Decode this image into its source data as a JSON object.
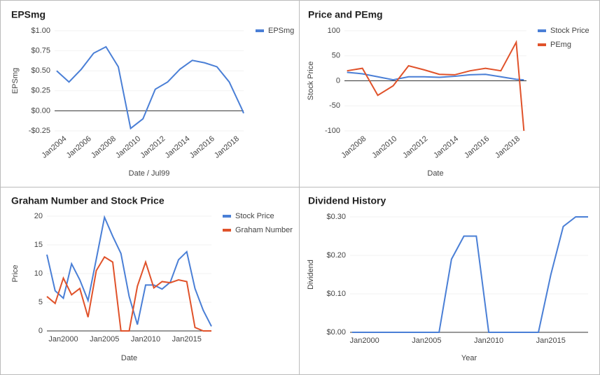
{
  "chart_data": [
    {
      "type": "line",
      "title": "EPSmg",
      "x_label": "Date / Jul99",
      "y_label": "EPSmg",
      "x": [
        "2003-07",
        "2004-07",
        "2005-07",
        "2006-07",
        "2007-07",
        "2008-07",
        "2009-07",
        "2010-07",
        "2011-07",
        "2012-07",
        "2013-07",
        "2014-07",
        "2015-07",
        "2016-07",
        "2017-07",
        "2018-07",
        "2018-09"
      ],
      "series": [
        {
          "name": "EPSmg",
          "color": "#4a7fd6",
          "values": [
            0.5,
            0.36,
            0.52,
            0.72,
            0.8,
            0.55,
            -0.22,
            -0.1,
            0.27,
            0.36,
            0.52,
            0.63,
            0.6,
            0.55,
            0.36,
            0.03,
            -0.03
          ]
        }
      ],
      "xlim": [
        "2003-05",
        "2018-09"
      ],
      "xticks": [
        {
          "value": "2004-01",
          "label": "Jan2004"
        },
        {
          "value": "2006-01",
          "label": "Jan2006"
        },
        {
          "value": "2008-01",
          "label": "Jan2008"
        },
        {
          "value": "2010-01",
          "label": "Jan2010"
        },
        {
          "value": "2012-01",
          "label": "Jan2012"
        },
        {
          "value": "2014-01",
          "label": "Jan2014"
        },
        {
          "value": "2016-01",
          "label": "Jan2016"
        },
        {
          "value": "2018-01",
          "label": "Jan2018"
        }
      ],
      "ylim": [
        -0.25,
        1.0
      ],
      "yticks": [
        {
          "value": -0.25,
          "label": "-$0.25"
        },
        {
          "value": 0,
          "label": "$0.00"
        },
        {
          "value": 0.25,
          "label": "$0.25"
        },
        {
          "value": 0.5,
          "label": "$0.50"
        },
        {
          "value": 0.75,
          "label": "$0.75"
        },
        {
          "value": 1.0,
          "label": "$1.00"
        }
      ],
      "legend": "top-right"
    },
    {
      "type": "line",
      "title": "Price and PEmg",
      "x_label": "Date",
      "y_label": "Stock Price",
      "x": [
        "2007-01",
        "2008-01",
        "2009-01",
        "2010-01",
        "2011-01",
        "2012-01",
        "2013-01",
        "2014-01",
        "2015-01",
        "2016-01",
        "2017-01",
        "2018-01",
        "2018-07"
      ],
      "series": [
        {
          "name": "Stock Price",
          "color": "#4a7fd6",
          "values": [
            17,
            14,
            8,
            2,
            8,
            8,
            7,
            9,
            12,
            13,
            8,
            3,
            2
          ]
        },
        {
          "name": "PEmg",
          "color": "#e0522a",
          "values": [
            20,
            25,
            -29,
            -10,
            30,
            22,
            13,
            12,
            20,
            25,
            20,
            77,
            -100
          ]
        }
      ],
      "xlim": [
        "2006-11",
        "2018-09"
      ],
      "xticks": [
        {
          "value": "2008-01",
          "label": "Jan2008"
        },
        {
          "value": "2010-01",
          "label": "Jan2010"
        },
        {
          "value": "2012-01",
          "label": "Jan2012"
        },
        {
          "value": "2014-01",
          "label": "Jan2014"
        },
        {
          "value": "2016-01",
          "label": "Jan2016"
        },
        {
          "value": "2018-01",
          "label": "Jan2018"
        }
      ],
      "ylim": [
        -100,
        100
      ],
      "yticks": [
        -100,
        -50,
        0,
        50,
        100
      ],
      "legend": "top-right"
    },
    {
      "type": "line",
      "title": "Graham Number and Stock Price",
      "x_label": "Date",
      "y_label": "Price",
      "x": [
        "1998-01",
        "1999-01",
        "2000-01",
        "2001-01",
        "2002-01",
        "2003-01",
        "2004-01",
        "2005-01",
        "2006-01",
        "2007-01",
        "2008-01",
        "2009-01",
        "2010-01",
        "2011-01",
        "2012-01",
        "2013-01",
        "2014-01",
        "2015-01",
        "2016-01",
        "2017-01",
        "2018-01"
      ],
      "series": [
        {
          "name": "Stock Price",
          "color": "#4a7fd6",
          "values": [
            13.3,
            7,
            5.7,
            11.7,
            8.9,
            5.3,
            12.5,
            19.8,
            16.5,
            13.5,
            6,
            1.1,
            8,
            8,
            7.3,
            8.5,
            12.4,
            13.8,
            7.4,
            3.6,
            0.8
          ]
        },
        {
          "name": "Graham Number",
          "color": "#e0522a",
          "values": [
            6,
            4.8,
            9.2,
            6.3,
            7.4,
            2.4,
            10.5,
            12.9,
            12,
            0,
            0,
            7.8,
            12,
            7.5,
            8.6,
            8.4,
            8.9,
            8.6,
            0.6,
            0,
            0
          ]
        }
      ],
      "xlim": [
        "1998-01",
        "2018-01"
      ],
      "xticks": [
        {
          "value": "2000-01",
          "label": "Jan2000"
        },
        {
          "value": "2005-01",
          "label": "Jan2005"
        },
        {
          "value": "2010-01",
          "label": "Jan2010"
        },
        {
          "value": "2015-01",
          "label": "Jan2015"
        }
      ],
      "ylim": [
        0,
        20
      ],
      "yticks": [
        0,
        5,
        10,
        15,
        20
      ],
      "legend": "top-right"
    },
    {
      "type": "line",
      "title": "Dividend History",
      "x_label": "Year",
      "y_label": "Dividend",
      "x": [
        "1999-01",
        "2000-01",
        "2001-01",
        "2002-01",
        "2003-01",
        "2004-01",
        "2005-01",
        "2006-01",
        "2007-01",
        "2008-01",
        "2009-01",
        "2010-01",
        "2011-01",
        "2012-01",
        "2013-01",
        "2014-01",
        "2015-01",
        "2016-01",
        "2017-01",
        "2018-01"
      ],
      "values": [
        0,
        0,
        0,
        0,
        0,
        0,
        0,
        0,
        0.19,
        0.25,
        0.25,
        0,
        0,
        0,
        0,
        0,
        0.15,
        0.275,
        0.3,
        0.3
      ],
      "color": "#4a7fd6",
      "xlim": [
        "1998-11",
        "2018-01"
      ],
      "xticks": [
        {
          "value": "2000-01",
          "label": "Jan2000"
        },
        {
          "value": "2005-01",
          "label": "Jan2005"
        },
        {
          "value": "2010-01",
          "label": "Jan2010"
        },
        {
          "value": "2015-01",
          "label": "Jan2015"
        }
      ],
      "ylim": [
        0,
        0.3
      ],
      "yticks": [
        {
          "value": 0,
          "label": "$0.00"
        },
        {
          "value": 0.1,
          "label": "$0.10"
        },
        {
          "value": 0.2,
          "label": "$0.20"
        },
        {
          "value": 0.3,
          "label": "$0.30"
        }
      ]
    }
  ]
}
